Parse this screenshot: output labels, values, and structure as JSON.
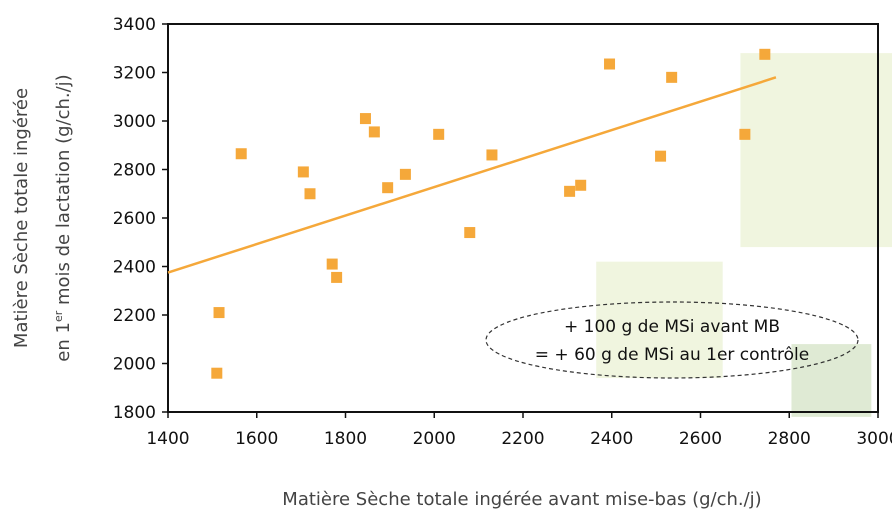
{
  "chart_data": {
    "type": "scatter",
    "xlabel": "Matière Sèche totale ingérée avant mise-bas (g/ch./j)",
    "ylabel_line1": "Matière Sèche totale ingérée",
    "ylabel_line2_prefix": "en 1",
    "ylabel_line2_sup": "er",
    "ylabel_line2_suffix": " mois de lactation (g/ch./j)",
    "xlim": [
      1400,
      3000
    ],
    "ylim": [
      1800,
      3400
    ],
    "x_ticks": [
      "1400",
      "1600",
      "1800",
      "2000",
      "2200",
      "2400",
      "2600",
      "2800",
      "3000"
    ],
    "y_ticks": [
      "1800",
      "2000",
      "2200",
      "2400",
      "2600",
      "2800",
      "3000",
      "3200",
      "3400"
    ],
    "grid": false,
    "points": [
      {
        "x": 1510,
        "y": 1960
      },
      {
        "x": 1515,
        "y": 2210
      },
      {
        "x": 1565,
        "y": 2865
      },
      {
        "x": 1705,
        "y": 2790
      },
      {
        "x": 1720,
        "y": 2700
      },
      {
        "x": 1770,
        "y": 2410
      },
      {
        "x": 1780,
        "y": 2355
      },
      {
        "x": 1845,
        "y": 3010
      },
      {
        "x": 1865,
        "y": 2955
      },
      {
        "x": 1895,
        "y": 2725
      },
      {
        "x": 1935,
        "y": 2780
      },
      {
        "x": 2010,
        "y": 2945
      },
      {
        "x": 2080,
        "y": 2540
      },
      {
        "x": 2130,
        "y": 2860
      },
      {
        "x": 2305,
        "y": 2710
      },
      {
        "x": 2330,
        "y": 2735
      },
      {
        "x": 2395,
        "y": 3235
      },
      {
        "x": 2510,
        "y": 2855
      },
      {
        "x": 2535,
        "y": 3180
      },
      {
        "x": 2700,
        "y": 2945
      },
      {
        "x": 2745,
        "y": 3275
      }
    ],
    "trendline": {
      "x": [
        1400,
        2770
      ],
      "y": [
        2375,
        3180
      ]
    },
    "highlight_regions": [
      {
        "x": [
          2690,
          3100
        ],
        "y": [
          2480,
          3280
        ],
        "color": "#eef4dc"
      },
      {
        "x": [
          2365,
          2650
        ],
        "y": [
          1940,
          2420
        ],
        "color": "#eef4dc"
      },
      {
        "x": [
          2805,
          2985
        ],
        "y": [
          1780,
          2080
        ],
        "color": "#dce8cf"
      }
    ],
    "annotation": {
      "line1": "+ 100 g de MSi avant MB",
      "line2": "= + 60 g de MSi au 1er contrôle"
    },
    "colors": {
      "point": "#f5a83a",
      "trend": "#f5a83a",
      "axis": "#111111"
    }
  }
}
